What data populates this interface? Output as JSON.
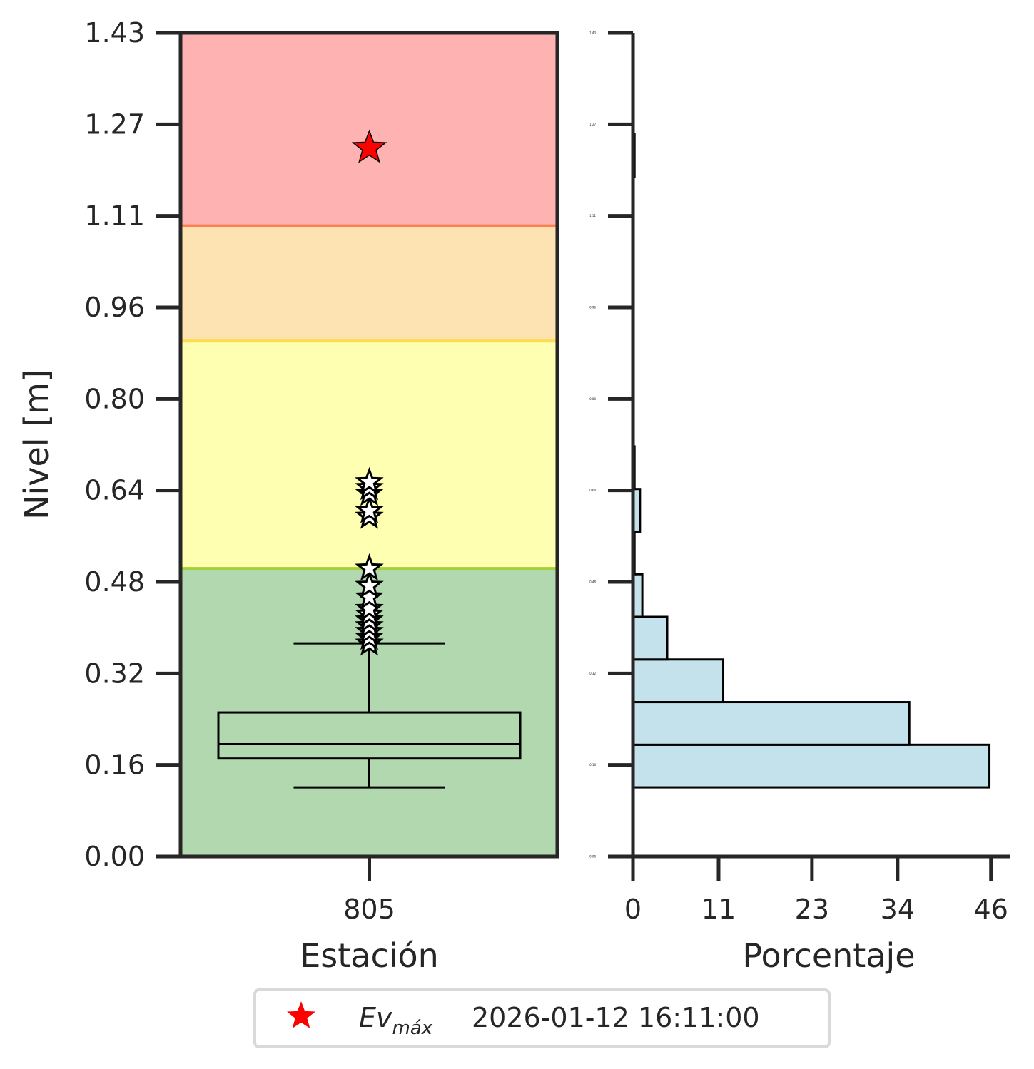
{
  "chart_data": [
    {
      "type": "box",
      "xlabel": "Estación",
      "ylabel": "Nivel [m]",
      "categories": [
        "805"
      ],
      "ylim": [
        0.0,
        1.43
      ],
      "yticks": [
        "0.00",
        "0.16",
        "0.32",
        "0.48",
        "0.64",
        "0.80",
        "0.96",
        "1.11",
        "1.27",
        "1.43"
      ],
      "alert_bands": [
        {
          "from": 0.0,
          "to": 0.5,
          "color": "#b2d8b0",
          "line_color": "#a3d13c"
        },
        {
          "from": 0.5,
          "to": 0.895,
          "color": "#feffb0",
          "line_color": "#ffdb4d"
        },
        {
          "from": 0.895,
          "to": 1.095,
          "color": "#fee3b2",
          "line_color": "#ff7f50"
        },
        {
          "from": 1.095,
          "to": 1.43,
          "color": "#feb2b2"
        }
      ],
      "box": {
        "whisker_low": 0.12,
        "q1": 0.17,
        "median": 0.195,
        "q3": 0.25,
        "whisker_high": 0.37
      },
      "outliers": [
        0.37,
        0.38,
        0.39,
        0.4,
        0.41,
        0.42,
        0.43,
        0.45,
        0.47,
        0.5,
        0.59,
        0.6,
        0.63,
        0.64,
        0.65
      ],
      "max_event": {
        "value": 1.23,
        "color": "#ff0000"
      }
    },
    {
      "type": "histogram",
      "orientation": "horizontal",
      "xlabel": "Porcentaje",
      "xticks": [
        "0",
        "11",
        "23",
        "34",
        "46"
      ],
      "xlim": [
        0,
        48.5
      ],
      "ylim": [
        0.0,
        1.43
      ],
      "bar_color": "#c3e2ec",
      "bins": [
        {
          "from": 0.12,
          "to": 0.194,
          "value": 45.8
        },
        {
          "from": 0.194,
          "to": 0.268,
          "value": 35.5
        },
        {
          "from": 0.268,
          "to": 0.342,
          "value": 11.6
        },
        {
          "from": 0.342,
          "to": 0.416,
          "value": 4.4
        },
        {
          "from": 0.416,
          "to": 0.49,
          "value": 1.2
        },
        {
          "from": 0.49,
          "to": 0.564,
          "value": 0.2
        },
        {
          "from": 0.564,
          "to": 0.638,
          "value": 0.9
        },
        {
          "from": 0.638,
          "to": 0.712,
          "value": 0.2
        },
        {
          "from": 1.18,
          "to": 1.254,
          "value": 0.2
        }
      ]
    }
  ],
  "legend": {
    "symbol_color": "#ff0000",
    "label_main": "Ev",
    "label_sub": "máx",
    "timestamp": "2026-01-12 16:11:00"
  }
}
